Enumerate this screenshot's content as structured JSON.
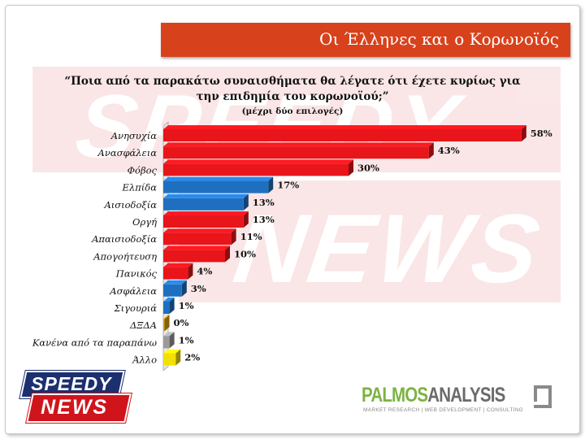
{
  "title": "Οι Έλληνες και ο Κορωνοϊός",
  "question_line1": "“Ποια από τα παρακάτω συναισθήματα θα λέγατε ότι έχετε κυρίως για",
  "question_line2": "την επιδημία του κορωνοϊού;”",
  "subtitle": "(μέχρι δύο επιλογές)",
  "watermark": {
    "line1": "SPEEDY",
    "line2": "NEWS"
  },
  "logo_left": {
    "line1": "SPEEDY",
    "line2": "NEWS"
  },
  "logo_right": {
    "part1": "PALMOS",
    "part2": "ANALYSIS",
    "tagline": "MARKET RESEARCH | WEB DEVELOPMENT | CONSULTING"
  },
  "colors": {
    "red": "#e8151b",
    "blue": "#1f6fc0",
    "orange": "#d9a514",
    "gray": "#9a9a9a",
    "yellow": "#f2e100",
    "title_bar": "#d7421c"
  },
  "chart_data": {
    "type": "bar",
    "orientation": "horizontal",
    "style": "3d",
    "categories": [
      "Ανησυχία",
      "Ανασφάλεια",
      "Φόβος",
      "Ελπίδα",
      "Αισιοδοξία",
      "Οργή",
      "Απαισιοδοξία",
      "Απογοήτευση",
      "Πανικός",
      "Ασφάλεια",
      "Σιγουριά",
      "ΔΞΔΑ",
      "Κανένα από τα παραπάνω",
      "Άλλο"
    ],
    "values": [
      58,
      43,
      30,
      17,
      13,
      13,
      11,
      10,
      4,
      3,
      1,
      0,
      1,
      2
    ],
    "value_labels": [
      "58%",
      "43%",
      "30%",
      "17%",
      "13%",
      "13%",
      "11%",
      "10%",
      "4%",
      "3%",
      "1%",
      "0%",
      "1%",
      "2%"
    ],
    "bar_colors": [
      "red",
      "red",
      "red",
      "blue",
      "blue",
      "red",
      "red",
      "red",
      "red",
      "blue",
      "blue",
      "orange",
      "gray",
      "yellow"
    ],
    "unit": "%",
    "xlim": [
      0,
      60
    ],
    "grid": false,
    "legend": "none"
  }
}
